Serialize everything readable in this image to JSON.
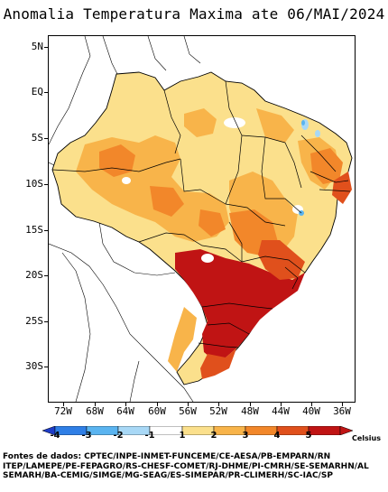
{
  "title": "Anomalia Temperatura Maxima ate 06/MAI/2024",
  "y_axis": {
    "labels": [
      "5N",
      "EQ",
      "5S",
      "10S",
      "15S",
      "20S",
      "25S",
      "30S"
    ]
  },
  "x_axis": {
    "labels": [
      "72W",
      "68W",
      "64W",
      "60W",
      "56W",
      "52W",
      "48W",
      "44W",
      "40W",
      "36W"
    ]
  },
  "colorbar": {
    "labels": [
      "-4",
      "-3",
      "-2",
      "-1",
      "1",
      "2",
      "3",
      "4",
      "5"
    ],
    "colors": [
      "#1e3cc8",
      "#2f7fe6",
      "#5ab4f0",
      "#a8d8f6",
      "#ffffff",
      "#fbe08c",
      "#f8b44a",
      "#f2872a",
      "#e0501c",
      "#c01414"
    ],
    "unit": "Celsius"
  },
  "sources": {
    "line1": "Fontes de dados: CPTEC/INPE-INMET-FUNCEME/CE-AESA/PB-EMPARN/RN",
    "line2": "ITEP/LAMEPE/PE-FEPAGRO/RS-CHESF-COMET/RJ-DHME/PI-CMRH/SE-SEMARHN/AL",
    "line3": "SEMARH/BA-CEMIG/SIMGE/MG-SEAG/ES-SIMEPAR/PR-CLIMERH/SC-IAC/SP"
  }
}
